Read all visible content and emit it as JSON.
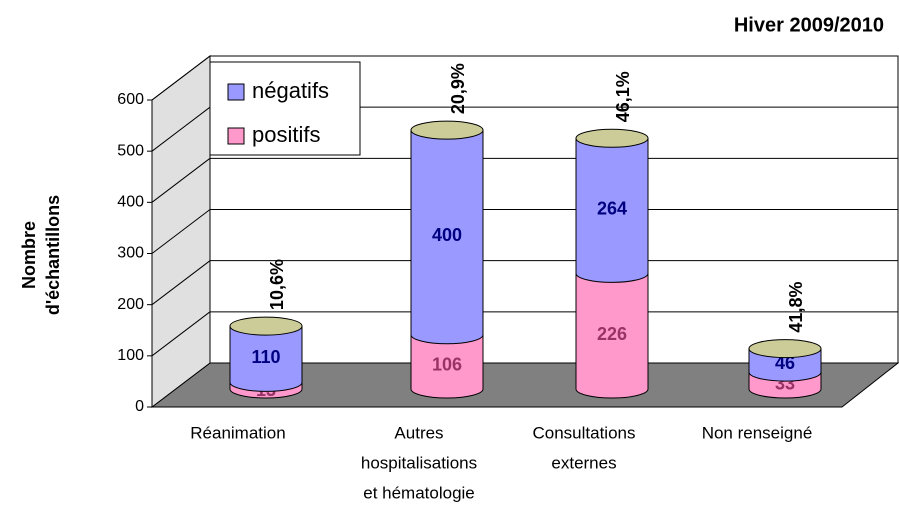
{
  "chart_data": {
    "type": "bar3d_stacked_cylinder",
    "title": "Hiver 2009/2010",
    "y_label": [
      "Nombre",
      "d'échantillons"
    ],
    "categories": [
      [
        "Réanimation"
      ],
      [
        "Autres",
        "hospitalisations",
        "et hématologie"
      ],
      [
        "Consultations",
        "externes"
      ],
      [
        "Non renseigné"
      ]
    ],
    "series": [
      {
        "name": "négatifs",
        "color": "#9999ff",
        "label_color": "#000080",
        "values": [
          110,
          400,
          264,
          46
        ]
      },
      {
        "name": "positifs",
        "color": "#ff99cc",
        "label_color": "#993366",
        "values": [
          13,
          106,
          226,
          33
        ]
      }
    ],
    "annotations": [
      "10,6%",
      "20,9%",
      "46,1%",
      "41,8%"
    ],
    "ylim": [
      0,
      600
    ],
    "yticks": [
      0,
      100,
      200,
      300,
      400,
      500,
      600
    ],
    "grid": true
  }
}
